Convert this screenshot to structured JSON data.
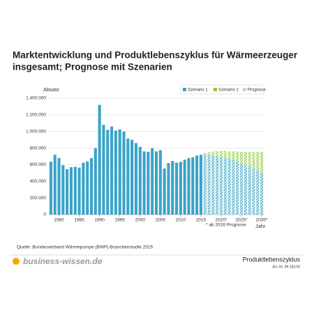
{
  "chart_data": {
    "type": "bar",
    "title": "Marktentwicklung und Produktlebenszyklus für Wärmeerzeuger",
    "subtitle": "insgesamt; Prognose mit Szenarien",
    "y_label": "Absatz",
    "x_label": "Jahr",
    "note": "* ab 2016 Prognose",
    "forecast_start": 2016,
    "forecast_label": "Prognose",
    "x": [
      1978,
      1979,
      1980,
      1981,
      1982,
      1983,
      1984,
      1985,
      1986,
      1987,
      1988,
      1989,
      1990,
      1991,
      1992,
      1993,
      1994,
      1995,
      1996,
      1997,
      1998,
      1999,
      2000,
      2001,
      2002,
      2003,
      2004,
      2005,
      2006,
      2007,
      2008,
      2009,
      2010,
      2011,
      2012,
      2013,
      2014,
      2015,
      2016,
      2017,
      2018,
      2019,
      2020,
      2021,
      2022,
      2023,
      2024,
      2025,
      2026,
      2027,
      2028,
      2029,
      2030
    ],
    "series": [
      {
        "name": "Szenario 1",
        "color": "#3aa3c8",
        "values": [
          637000,
          720000,
          680000,
          595000,
          545000,
          570000,
          575000,
          565000,
          625000,
          640000,
          680000,
          800000,
          1320000,
          1080000,
          1020000,
          1060000,
          1010000,
          1025000,
          1000000,
          915000,
          900000,
          860000,
          815000,
          760000,
          755000,
          800000,
          760000,
          775000,
          555000,
          620000,
          645000,
          625000,
          635000,
          660000,
          680000,
          690000,
          710000,
          720000,
          715000,
          710000,
          705000,
          700000,
          690000,
          680000,
          670000,
          660000,
          640000,
          620000,
          600000,
          580000,
          555000,
          530000,
          505000
        ]
      },
      {
        "name": "Szenario 2",
        "color": "#8dc63f",
        "values": [
          null,
          null,
          null,
          null,
          null,
          null,
          null,
          null,
          null,
          null,
          null,
          null,
          null,
          null,
          null,
          null,
          null,
          null,
          null,
          null,
          null,
          null,
          null,
          null,
          null,
          null,
          null,
          null,
          null,
          null,
          null,
          null,
          null,
          null,
          null,
          null,
          null,
          null,
          740000,
          750000,
          760000,
          765000,
          765000,
          765000,
          760000,
          760000,
          760000,
          755000,
          755000,
          755000,
          755000,
          755000,
          755000
        ]
      }
    ],
    "xlim": [
      1977.5,
      2030.5
    ],
    "xticks": [
      1980,
      1985,
      1990,
      1995,
      2000,
      2005,
      2010,
      2015,
      {
        "value": 2020,
        "label": "2020*"
      },
      {
        "value": 2025,
        "label": "2025*"
      },
      {
        "value": 2030,
        "label": "2030*"
      }
    ],
    "ylim": [
      0,
      1400000
    ],
    "yticks": [
      0,
      {
        "value": 200000,
        "label": "200.000"
      },
      {
        "value": 400000,
        "label": "400.000"
      },
      {
        "value": 600000,
        "label": "600.000"
      },
      {
        "value": 800000,
        "label": "800.000"
      },
      {
        "value": 1000000,
        "label": "1.000.000"
      },
      {
        "value": 1200000,
        "label": "1.200.000"
      },
      {
        "value": 1400000,
        "label": "1.400.000"
      }
    ],
    "grid": true
  },
  "source": "Quelle: Bundesverband Wärmepumpe (BWP)-Branchenstudie 2015",
  "footer": {
    "brand": "business-wissen.de",
    "title": "Produktlebenszyklus",
    "article": "Art.-Nr. 99.163.03"
  }
}
